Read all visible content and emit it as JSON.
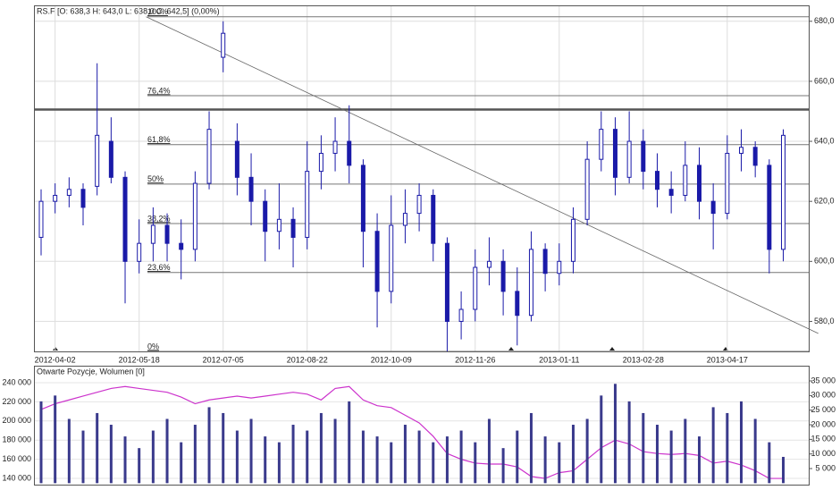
{
  "chart_data": [
    {
      "type": "ohlc",
      "title": "RS.F [O: 638,3  H: 643,0  L: 638,0  C: 642,5] (0,00%)",
      "categories": [
        null,
        "2012-04-02",
        null,
        null,
        null,
        null,
        null,
        "2012-05-18",
        null,
        null,
        null,
        null,
        null,
        "2012-07-05",
        null,
        null,
        null,
        null,
        null,
        "2012-08-22",
        null,
        null,
        null,
        null,
        null,
        "2012-10-09",
        null,
        null,
        null,
        null,
        null,
        "2012-11-26",
        null,
        null,
        null,
        null,
        null,
        "2013-01-11",
        null,
        null,
        null,
        null,
        null,
        "2013-02-28",
        null,
        null,
        null,
        null,
        null,
        "2013-04-17",
        null,
        null,
        null,
        null
      ],
      "open": [
        608,
        620,
        622,
        624,
        625,
        640,
        628,
        600,
        606,
        612,
        606,
        604,
        626,
        668,
        640,
        628,
        620,
        610,
        614,
        608,
        630,
        636,
        640,
        632,
        610,
        590,
        612,
        616,
        622,
        606,
        580,
        584,
        598,
        600,
        590,
        582,
        604,
        596,
        600,
        614,
        634,
        644,
        628,
        640,
        630,
        624,
        622,
        632,
        620,
        616,
        636,
        638,
        632,
        604
      ],
      "high": [
        624,
        626,
        628,
        626,
        666,
        648,
        630,
        614,
        618,
        616,
        614,
        630,
        650,
        680,
        646,
        636,
        624,
        626,
        618,
        640,
        642,
        648,
        652,
        634,
        616,
        622,
        624,
        626,
        624,
        608,
        590,
        604,
        608,
        604,
        598,
        610,
        606,
        606,
        618,
        640,
        650,
        648,
        650,
        644,
        636,
        630,
        640,
        638,
        626,
        642,
        644,
        640,
        634,
        644
      ],
      "low": [
        602,
        616,
        618,
        612,
        622,
        626,
        586,
        596,
        600,
        600,
        594,
        600,
        624,
        663,
        622,
        612,
        600,
        604,
        598,
        604,
        624,
        630,
        626,
        598,
        578,
        586,
        606,
        610,
        600,
        570,
        574,
        580,
        592,
        582,
        572,
        580,
        590,
        592,
        596,
        612,
        630,
        622,
        626,
        624,
        618,
        616,
        620,
        614,
        604,
        614,
        630,
        628,
        596,
        600
      ],
      "close": [
        620,
        622,
        624,
        618,
        642,
        628,
        600,
        606,
        612,
        606,
        604,
        626,
        644,
        676,
        628,
        620,
        610,
        614,
        608,
        630,
        636,
        640,
        632,
        610,
        590,
        612,
        616,
        622,
        606,
        580,
        584,
        598,
        600,
        590,
        582,
        604,
        596,
        600,
        614,
        634,
        644,
        628,
        640,
        630,
        624,
        622,
        632,
        620,
        616,
        636,
        638,
        632,
        604,
        642
      ],
      "color": "#1a1aa8",
      "ylim": [
        570,
        685
      ],
      "yticks": [
        {
          "value": 580,
          "label": "580,0"
        },
        {
          "value": 600,
          "label": "600,0"
        },
        {
          "value": 620,
          "label": "620,0"
        },
        {
          "value": 640,
          "label": "640,0"
        },
        {
          "value": 660,
          "label": "660,0"
        },
        {
          "value": 680,
          "label": "680,0"
        }
      ],
      "fib_levels": [
        {
          "value": 681.5,
          "label": "100%"
        },
        {
          "value": 655.2,
          "label": "76,4%"
        },
        {
          "value": 638.9,
          "label": "61,8%"
        },
        {
          "value": 625.75,
          "label": "50%"
        },
        {
          "value": 612.6,
          "label": "38,2%"
        },
        {
          "value": 596.3,
          "label": "23,6%"
        },
        {
          "value": 570,
          "label": "0%"
        }
      ],
      "resistance": 650.6,
      "trend_line": {
        "x": [
          7.5,
          55.5
        ],
        "y": [
          681.5,
          576
        ]
      },
      "grid": true
    },
    {
      "type": "combo",
      "title": "Otwarte Pozycje, Wolumen [0]",
      "series": [
        {
          "name": "Otwarte Pozycje",
          "color": "#cc33cc",
          "values": [
            212000,
            218000,
            222000,
            226000,
            230000,
            234000,
            236000,
            234000,
            232000,
            230000,
            225000,
            218000,
            222000,
            224000,
            226000,
            224000,
            226000,
            228000,
            230000,
            228000,
            222000,
            234000,
            236000,
            222000,
            216000,
            214000,
            206000,
            198000,
            184000,
            166000,
            160000,
            156000,
            155000,
            155000,
            152000,
            142000,
            140000,
            146000,
            148000,
            160000,
            172000,
            180000,
            176000,
            168000,
            166000,
            165000,
            166000,
            164000,
            156000,
            158000,
            154000,
            148000,
            140000,
            140000
          ]
        },
        {
          "name": "Wolumen",
          "color": "#3a3a8c",
          "axis": "y2",
          "values": [
            28000,
            30000,
            22000,
            18000,
            24000,
            20000,
            16000,
            12000,
            18000,
            22000,
            14000,
            20000,
            26000,
            24000,
            18000,
            22000,
            16000,
            14000,
            20000,
            18000,
            24000,
            22000,
            28000,
            18000,
            16000,
            14000,
            20000,
            18000,
            14000,
            16000,
            18000,
            14000,
            22000,
            12000,
            18000,
            24000,
            16000,
            14000,
            20000,
            22000,
            30000,
            34000,
            28000,
            24000,
            20000,
            18000,
            22000,
            16000,
            26000,
            24000,
            28000,
            22000,
            14000,
            9000
          ]
        }
      ],
      "ylim": [
        133500,
        256800
      ],
      "yticks": [
        {
          "value": 140000,
          "label": "140 000"
        },
        {
          "value": 160000,
          "label": "160 000"
        },
        {
          "value": 180000,
          "label": "180 000"
        },
        {
          "value": 200000,
          "label": "200 000"
        },
        {
          "value": 220000,
          "label": "220 000"
        },
        {
          "value": 240000,
          "label": "240 000"
        }
      ],
      "y2lim": [
        -500,
        39900
      ],
      "y2ticks": [
        {
          "value": 5000,
          "label": "5 000"
        },
        {
          "value": 10000,
          "label": "10 000"
        },
        {
          "value": 15000,
          "label": "15 000"
        },
        {
          "value": 20000,
          "label": "20 000"
        },
        {
          "value": 25000,
          "label": "25 000"
        },
        {
          "value": 30000,
          "label": "30 000"
        },
        {
          "value": 35000,
          "label": "35 000"
        }
      ],
      "grid": true
    }
  ]
}
